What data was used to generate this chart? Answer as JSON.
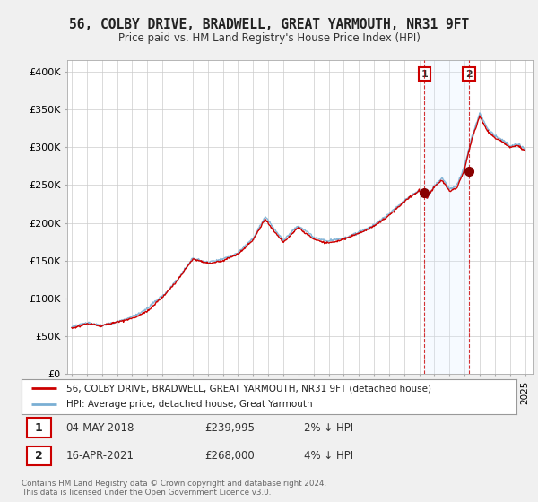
{
  "title": "56, COLBY DRIVE, BRADWELL, GREAT YARMOUTH, NR31 9FT",
  "subtitle": "Price paid vs. HM Land Registry's House Price Index (HPI)",
  "ylabel_ticks": [
    "£0",
    "£50K",
    "£100K",
    "£150K",
    "£200K",
    "£250K",
    "£300K",
    "£350K",
    "£400K"
  ],
  "ytick_values": [
    0,
    50000,
    100000,
    150000,
    200000,
    250000,
    300000,
    350000,
    400000
  ],
  "ylim": [
    0,
    415000
  ],
  "sale1": {
    "date": "04-MAY-2018",
    "price": 239995,
    "label": "1",
    "hpi_diff": "2% ↓ HPI"
  },
  "sale2": {
    "date": "16-APR-2021",
    "price": 268000,
    "label": "2",
    "hpi_diff": "4% ↓ HPI"
  },
  "legend1": "56, COLBY DRIVE, BRADWELL, GREAT YARMOUTH, NR31 9FT (detached house)",
  "legend2": "HPI: Average price, detached house, Great Yarmouth",
  "copyright": "Contains HM Land Registry data © Crown copyright and database right 2024.\nThis data is licensed under the Open Government Licence v3.0.",
  "line_color_property": "#cc0000",
  "line_color_hpi": "#7aafd4",
  "shade_color": "#ddeeff",
  "background_color": "#f0f0f0",
  "plot_bg": "#ffffff",
  "sale1_x": 2018.34,
  "sale2_x": 2021.29,
  "xmin": 1994.7,
  "xmax": 2025.5
}
